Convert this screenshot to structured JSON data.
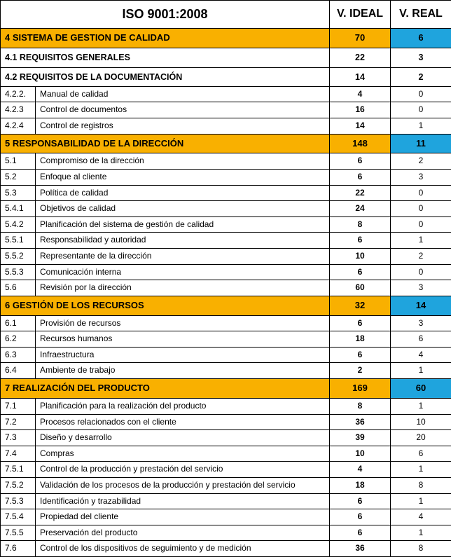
{
  "header": {
    "title": "ISO 9001:2008",
    "col_ideal": "V. IDEAL",
    "col_real": "V. REAL"
  },
  "sections": [
    {
      "label": "4 SISTEMA DE GESTION DE CALIDAD",
      "ideal": "70",
      "real": "6",
      "subsections": [
        {
          "label": "4.1 REQUISITOS GENERALES",
          "ideal": "22",
          "real": "3"
        },
        {
          "label": "4.2 REQUISITOS DE LA DOCUMENTACIÓN",
          "ideal": "14",
          "real": "2"
        }
      ],
      "rows": [
        {
          "code": "4.2.2.",
          "desc": "Manual de calidad",
          "ideal": "4",
          "real": "0"
        },
        {
          "code": "4.2.3",
          "desc": "Control de documentos",
          "ideal": "16",
          "real": "0"
        },
        {
          "code": "4.2.4",
          "desc": "Control de registros",
          "ideal": "14",
          "real": "1"
        }
      ]
    },
    {
      "label": "5 RESPONSABILIDAD DE LA DIRECCIÓN",
      "ideal": "148",
      "real": "11",
      "subsections": [],
      "rows": [
        {
          "code": "5.1",
          "desc": "Compromiso de la dirección",
          "ideal": "6",
          "real": "2"
        },
        {
          "code": "5.2",
          "desc": "Enfoque al cliente",
          "ideal": "6",
          "real": "3"
        },
        {
          "code": "5.3",
          "desc": "Política de calidad",
          "ideal": "22",
          "real": "0"
        },
        {
          "code": "5.4.1",
          "desc": "Objetivos de calidad",
          "ideal": "24",
          "real": "0"
        },
        {
          "code": "5.4.2",
          "desc": "Planificación del sistema de gestión de calidad",
          "ideal": "8",
          "real": "0"
        },
        {
          "code": "5.5.1",
          "desc": "Responsabilidad y autoridad",
          "ideal": "6",
          "real": "1"
        },
        {
          "code": "5.5.2",
          "desc": "Representante de la dirección",
          "ideal": "10",
          "real": "2"
        },
        {
          "code": "5.5.3",
          "desc": "Comunicación interna",
          "ideal": "6",
          "real": "0"
        },
        {
          "code": "5.6",
          "desc": "Revisión por la dirección",
          "ideal": "60",
          "real": "3"
        }
      ]
    },
    {
      "label": "6 GESTIÓN DE LOS RECURSOS",
      "ideal": "32",
      "real": "14",
      "subsections": [],
      "rows": [
        {
          "code": "6.1",
          "desc": "Provisión de recursos",
          "ideal": "6",
          "real": "3"
        },
        {
          "code": "6.2",
          "desc": "Recursos humanos",
          "ideal": "18",
          "real": "6"
        },
        {
          "code": "6.3",
          "desc": "Infraestructura",
          "ideal": "6",
          "real": "4"
        },
        {
          "code": "6.4",
          "desc": "Ambiente de trabajo",
          "ideal": "2",
          "real": "1"
        }
      ]
    },
    {
      "label": "7 REALIZACIÓN DEL PRODUCTO",
      "ideal": "169",
      "real": "60",
      "subsections": [],
      "rows": [
        {
          "code": "7.1",
          "desc": "Planificación para la realización del producto",
          "ideal": "8",
          "real": "1"
        },
        {
          "code": "7.2",
          "desc": "Procesos relacionados con el cliente",
          "ideal": "36",
          "real": "10"
        },
        {
          "code": "7.3",
          "desc": "Diseño y desarrollo",
          "ideal": "39",
          "real": "20"
        },
        {
          "code": "7.4",
          "desc": "Compras",
          "ideal": "10",
          "real": "6"
        },
        {
          "code": "7.5.1",
          "desc": "Control de la producción y prestación del servicio",
          "ideal": "4",
          "real": "1"
        },
        {
          "code": "7.5.2",
          "desc": "Validación de los procesos de la producción y prestación del servicio",
          "ideal": "18",
          "real": "8"
        },
        {
          "code": "7.5.3",
          "desc": "Identificación y trazabilidad",
          "ideal": "6",
          "real": "1"
        },
        {
          "code": "7.5.4",
          "desc": "Propiedad del cliente",
          "ideal": "6",
          "real": "4"
        },
        {
          "code": "7.5.5",
          "desc": "Preservación del producto",
          "ideal": "6",
          "real": "1"
        },
        {
          "code": "7.6",
          "desc": "Control de los dispositivos de seguimiento y de medición",
          "ideal": "36",
          "real": "8"
        }
      ]
    }
  ],
  "style": {
    "section_bg": "#f9b000",
    "real_bg": "#1fa4dd",
    "border_color": "#000000",
    "font_family": "Arial"
  }
}
